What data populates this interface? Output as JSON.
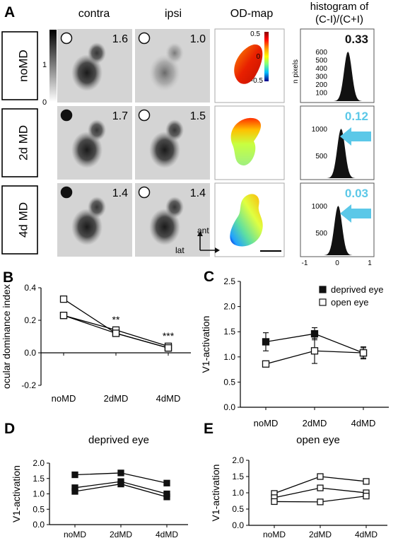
{
  "panel_a": {
    "letter": "A",
    "col_headers": [
      "contra",
      "ipsi",
      "OD-map",
      "histogram of",
      "(C-I)/(C+I)"
    ],
    "rows": [
      {
        "label": "noMD",
        "contra_value": "1.6",
        "ipsi_value": "1.0",
        "od_index": "0.33",
        "contra_eye_closed": false,
        "ipsi_eye_closed": false,
        "hist_yticks": [
          "600",
          "500",
          "400",
          "300",
          "200",
          "100"
        ],
        "hist_ylabel": "n pixels"
      },
      {
        "label": "2d MD",
        "contra_value": "1.7",
        "ipsi_value": "1.5",
        "od_index": "0.12",
        "contra_eye_closed": true,
        "ipsi_eye_closed": false,
        "hist_yticks": [
          "1000",
          "500"
        ],
        "hist_ylabel": ""
      },
      {
        "label": "4d MD",
        "contra_value": "1.4",
        "ipsi_value": "1.4",
        "od_index": "0.03",
        "contra_eye_closed": true,
        "ipsi_eye_closed": false,
        "hist_yticks": [
          "1000",
          "500"
        ],
        "hist_ylabel": ""
      }
    ],
    "grayscale_ticks": [
      "1",
      "0"
    ],
    "colorbar_ticks": [
      "0.5",
      "0",
      "-0.5"
    ],
    "hist_xticks": [
      "-1",
      "0",
      "1"
    ],
    "orientation": {
      "ant": "ant",
      "lat": "lat"
    },
    "colors": {
      "highlight": "#5bc8e8",
      "panel_bg": "#d4d4d4"
    }
  },
  "chart_data": [
    {
      "id": "B",
      "letter": "B",
      "type": "line",
      "categories": [
        "noMD",
        "2dMD",
        "4dMD"
      ],
      "ylabel": "ocular dominance index",
      "ylim": [
        -0.2,
        0.4
      ],
      "yticks": [
        "0.4",
        "0.2",
        "0.0",
        "-0.2"
      ],
      "series": [
        {
          "values": [
            0.33,
            0.12,
            0.03
          ],
          "marker": "open-square"
        },
        {
          "values": [
            0.23,
            0.14,
            0.04
          ],
          "marker": "open-square"
        },
        {
          "values": [
            0.23,
            0.12,
            0.03
          ],
          "marker": "open-square"
        }
      ],
      "annotations": [
        {
          "category": "2dMD",
          "text": "**"
        },
        {
          "category": "4dMD",
          "text": "***"
        }
      ]
    },
    {
      "id": "C",
      "letter": "C",
      "type": "line",
      "categories": [
        "noMD",
        "2dMD",
        "4dMD"
      ],
      "ylabel": "V1-activation",
      "ylim": [
        0.0,
        2.5
      ],
      "yticks": [
        "2.5",
        "2.0",
        "1.5",
        "1.0",
        "0.5",
        "0.0"
      ],
      "series": [
        {
          "name": "deprived eye",
          "values": [
            1.3,
            1.46,
            1.08
          ],
          "error": [
            0.18,
            0.12,
            0.1
          ],
          "marker": "filled-square"
        },
        {
          "name": "open eye",
          "values": [
            0.86,
            1.12,
            1.08
          ],
          "error": [
            0.05,
            0.25,
            0.12
          ],
          "marker": "open-square"
        }
      ],
      "legend": "top-right"
    },
    {
      "id": "D",
      "letter": "D",
      "type": "line",
      "categories": [
        "noMD",
        "2dMD",
        "4dMD"
      ],
      "title": "deprived eye",
      "ylabel": "V1-activation",
      "ylim": [
        0.0,
        2.0
      ],
      "yticks": [
        "2.0",
        "1.5",
        "1.0",
        "0.5",
        "0.0"
      ],
      "series": [
        {
          "values": [
            1.62,
            1.68,
            1.35
          ],
          "marker": "filled-square"
        },
        {
          "values": [
            1.2,
            1.4,
            1.0
          ],
          "marker": "filled-square"
        },
        {
          "values": [
            1.08,
            1.32,
            0.9
          ],
          "marker": "filled-square"
        }
      ]
    },
    {
      "id": "E",
      "letter": "E",
      "type": "line",
      "categories": [
        "noMD",
        "2dMD",
        "4dMD"
      ],
      "title": "open eye",
      "ylabel": "V1-activation",
      "ylim": [
        0.0,
        2.0
      ],
      "yticks": [
        "2.0",
        "1.5",
        "1.0",
        "0.5",
        "0.0"
      ],
      "series": [
        {
          "values": [
            0.98,
            1.5,
            1.35
          ],
          "marker": "open-square"
        },
        {
          "values": [
            0.85,
            1.15,
            1.0
          ],
          "marker": "open-square"
        },
        {
          "values": [
            0.73,
            0.72,
            0.9
          ],
          "marker": "open-square"
        }
      ]
    }
  ]
}
